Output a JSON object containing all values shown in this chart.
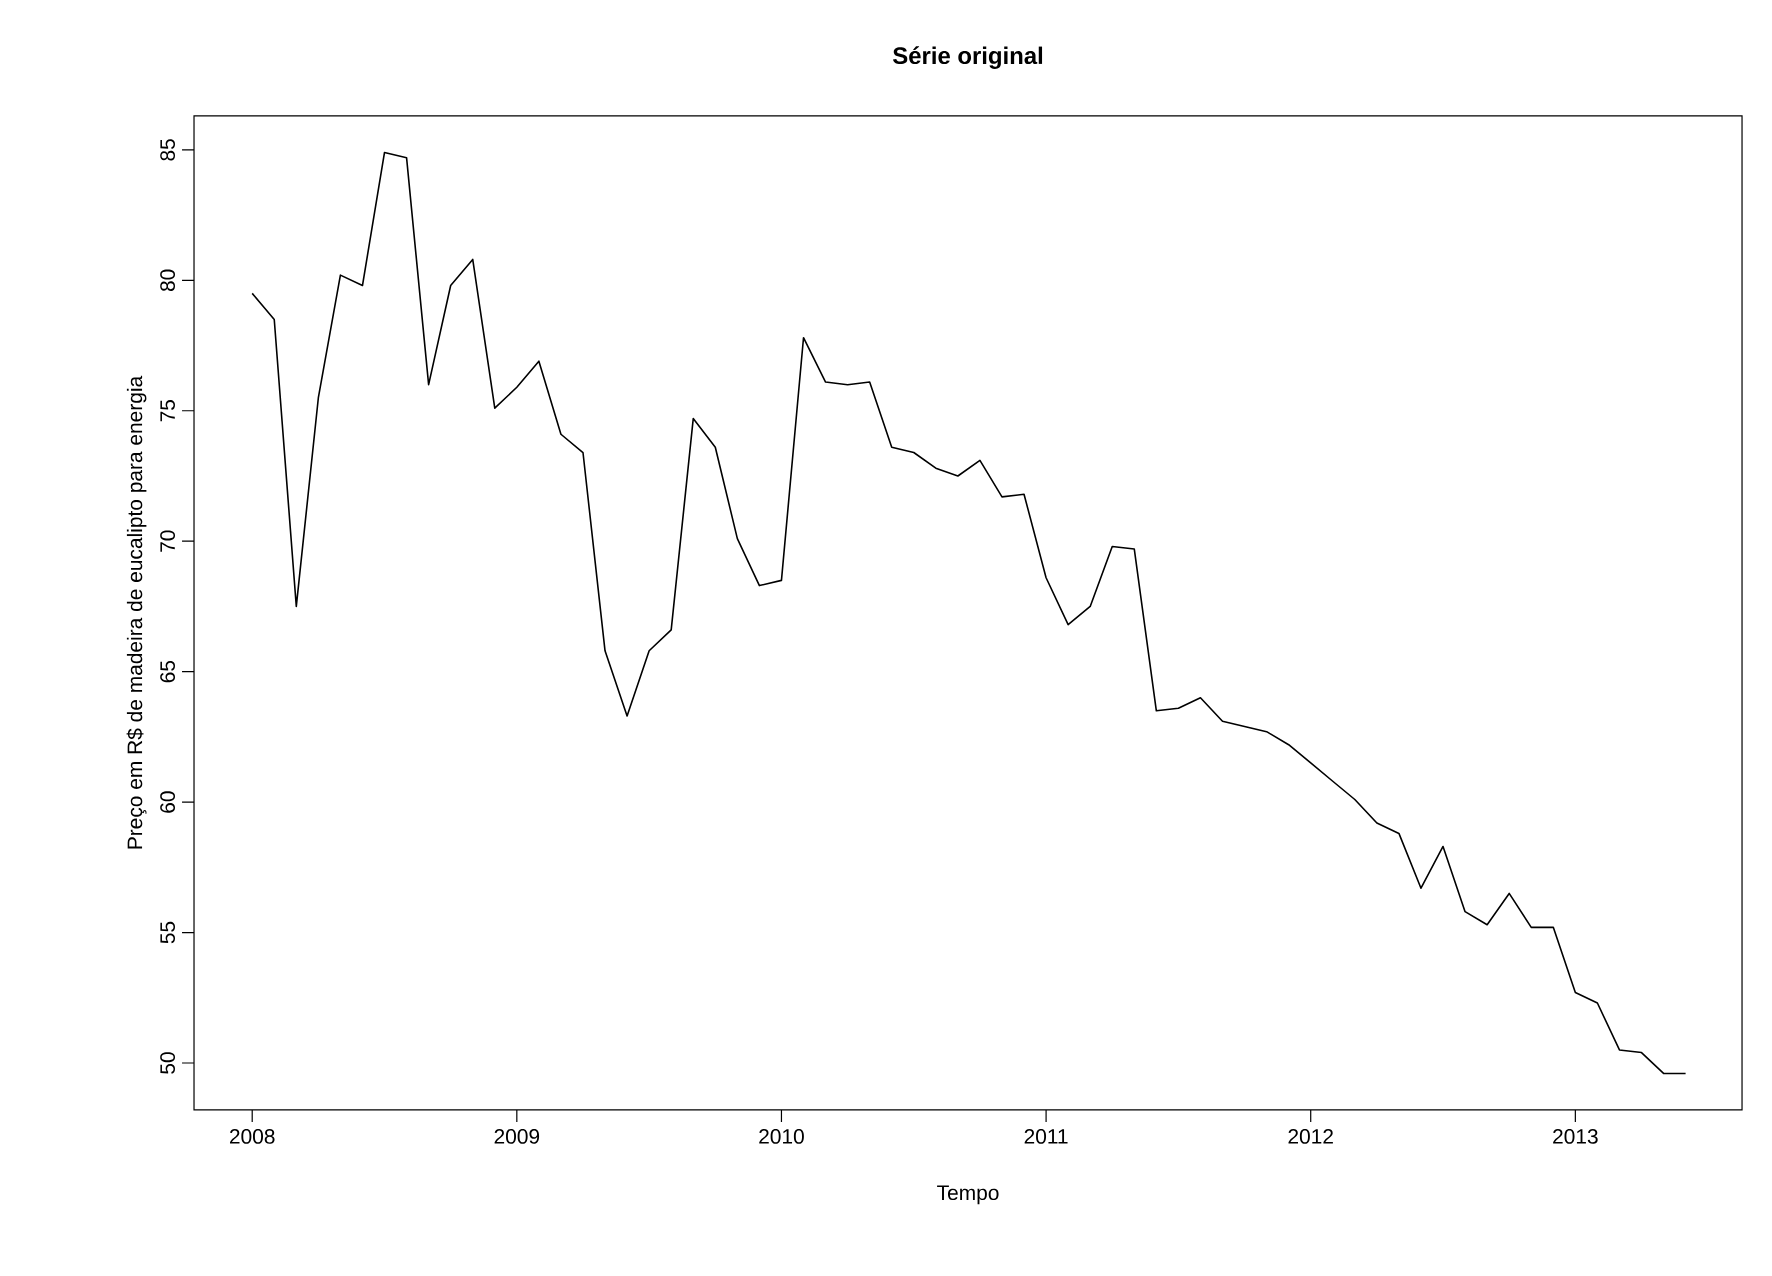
{
  "chart_data": {
    "type": "line",
    "title": "Série original",
    "xlabel": "Tempo",
    "ylabel": "Preço em R$ de madeira de eucalipto para energia",
    "x": [
      "2008-01",
      "2008-02",
      "2008-03",
      "2008-04",
      "2008-05",
      "2008-06",
      "2008-07",
      "2008-08",
      "2008-09",
      "2008-10",
      "2008-11",
      "2008-12",
      "2009-01",
      "2009-02",
      "2009-03",
      "2009-04",
      "2009-05",
      "2009-06",
      "2009-07",
      "2009-08",
      "2009-09",
      "2009-10",
      "2009-11",
      "2009-12",
      "2010-01",
      "2010-02",
      "2010-03",
      "2010-04",
      "2010-05",
      "2010-06",
      "2010-07",
      "2010-08",
      "2010-09",
      "2010-10",
      "2010-11",
      "2010-12",
      "2011-01",
      "2011-02",
      "2011-03",
      "2011-04",
      "2011-05",
      "2011-06",
      "2011-07",
      "2011-08",
      "2011-09",
      "2011-10",
      "2011-11",
      "2011-12",
      "2012-01",
      "2012-02",
      "2012-03",
      "2012-04",
      "2012-05",
      "2012-06",
      "2012-07",
      "2012-08",
      "2012-09",
      "2012-10",
      "2012-11",
      "2012-12",
      "2013-01",
      "2013-02",
      "2013-03",
      "2013-04",
      "2013-05",
      "2013-06"
    ],
    "series": [
      {
        "color": "#000000",
        "line_style": "solid",
        "values": [
          79.5,
          78.5,
          67.5,
          75.5,
          80.2,
          79.8,
          84.9,
          84.7,
          76.0,
          79.8,
          80.8,
          75.1,
          75.9,
          76.9,
          74.1,
          73.4,
          65.8,
          63.3,
          65.8,
          66.6,
          74.7,
          73.6,
          70.1,
          68.3,
          68.5,
          77.8,
          76.1,
          76.0,
          76.1,
          73.6,
          73.4,
          72.8,
          72.5,
          73.1,
          71.7,
          71.8,
          68.6,
          66.8,
          67.5,
          69.8,
          69.7,
          63.5,
          63.6,
          64.0,
          63.1,
          62.9,
          62.7,
          62.2,
          61.5,
          60.8,
          60.1,
          59.2,
          58.8,
          56.7,
          58.3,
          55.8,
          55.3,
          56.5,
          55.2,
          55.2,
          52.7,
          52.3,
          50.5,
          50.4,
          49.6,
          49.6
        ]
      }
    ],
    "xlim": [
      "2007-10-12",
      "2013-08-18"
    ],
    "xticks": [
      "2008",
      "2009",
      "2010",
      "2011",
      "2012",
      "2013"
    ],
    "ylim": [
      48.2,
      86.3
    ],
    "yticks": [
      50,
      55,
      60,
      65,
      70,
      75,
      80,
      85
    ],
    "grid": false,
    "marker": "none"
  }
}
